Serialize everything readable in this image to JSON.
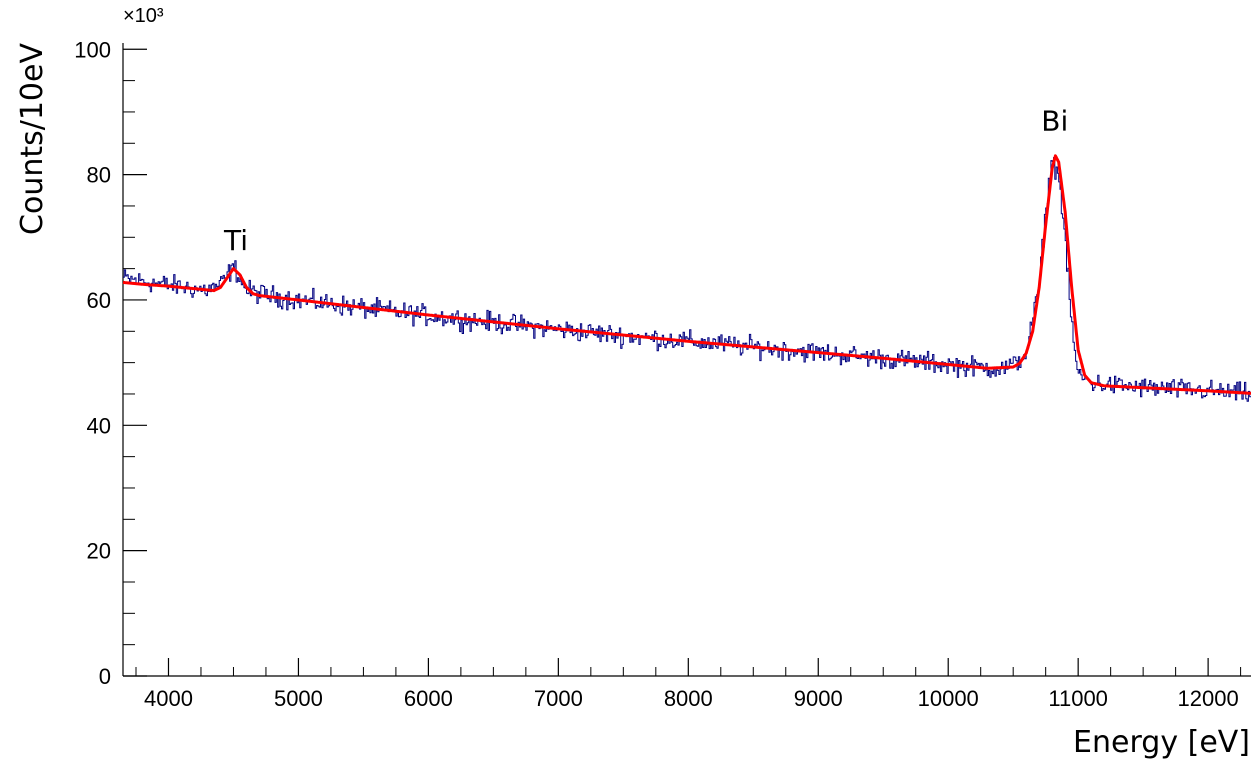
{
  "chart_data": {
    "type": "line",
    "title": "",
    "xlabel": "Energy [eV]",
    "ylabel": "Counts/10eV",
    "y_multiplier_label": "×10³",
    "y_multiplier": 1000,
    "xlim": [
      3650,
      12330
    ],
    "ylim": [
      0,
      101000
    ],
    "x_ticks": [
      4000,
      5000,
      6000,
      7000,
      8000,
      9000,
      10000,
      11000,
      12000
    ],
    "x_tick_labels": [
      "4000",
      "5000",
      "6000",
      "7000",
      "8000",
      "9000",
      "10000",
      "11000",
      "12000"
    ],
    "y_ticks": [
      0,
      20000,
      40000,
      60000,
      80000,
      100000
    ],
    "y_tick_labels": [
      "0",
      "20",
      "40",
      "60",
      "80",
      "100"
    ],
    "grid": false,
    "legend": "none",
    "annotations": [
      {
        "text": "Ti",
        "x": 4520,
        "y": 68000
      },
      {
        "text": "Bi",
        "x": 10820,
        "y": 87000
      }
    ],
    "series": [
      {
        "kind": "histogram",
        "color": "#000080",
        "bin_width": 10,
        "x": [
          3650,
          3700,
          3800,
          3900,
          4000,
          4100,
          4200,
          4300,
          4400,
          4450,
          4500,
          4550,
          4600,
          4700,
          4800,
          5000,
          5500,
          6000,
          6500,
          7000,
          7500,
          8000,
          8500,
          9000,
          9500,
          10000,
          10400,
          10500,
          10600,
          10700,
          10750,
          10800,
          10850,
          10900,
          10950,
          11000,
          11100,
          11200,
          11500,
          12000,
          12330
        ],
        "y": [
          63500,
          63300,
          63000,
          62700,
          62400,
          62100,
          61800,
          61600,
          62400,
          63800,
          65200,
          63800,
          61500,
          61000,
          60600,
          60000,
          58700,
          57500,
          56400,
          55300,
          54300,
          53400,
          52500,
          51600,
          50700,
          49700,
          49000,
          49500,
          51500,
          62000,
          74000,
          82500,
          80000,
          70000,
          56000,
          48000,
          46800,
          46500,
          46000,
          45500,
          45000
        ]
      },
      {
        "kind": "fit",
        "color": "#ff0000",
        "x": [
          3650,
          3800,
          4000,
          4200,
          4350,
          4400,
          4450,
          4500,
          4550,
          4600,
          4650,
          4700,
          5000,
          5500,
          6000,
          6500,
          7000,
          7500,
          8000,
          8500,
          9000,
          9500,
          10000,
          10300,
          10500,
          10550,
          10600,
          10650,
          10700,
          10750,
          10800,
          10825,
          10850,
          10900,
          10950,
          11000,
          11050,
          11100,
          11200,
          11500,
          12000,
          12330
        ],
        "y": [
          62800,
          62500,
          62200,
          61800,
          61500,
          62000,
          63500,
          65000,
          64000,
          62000,
          61000,
          60700,
          60000,
          58800,
          57600,
          56500,
          55400,
          54400,
          53400,
          52500,
          51600,
          50700,
          49700,
          49100,
          49300,
          49900,
          51500,
          55000,
          62000,
          72000,
          81000,
          83000,
          82000,
          74000,
          62000,
          52000,
          48000,
          46800,
          46300,
          46000,
          45500,
          45100
        ]
      }
    ]
  }
}
